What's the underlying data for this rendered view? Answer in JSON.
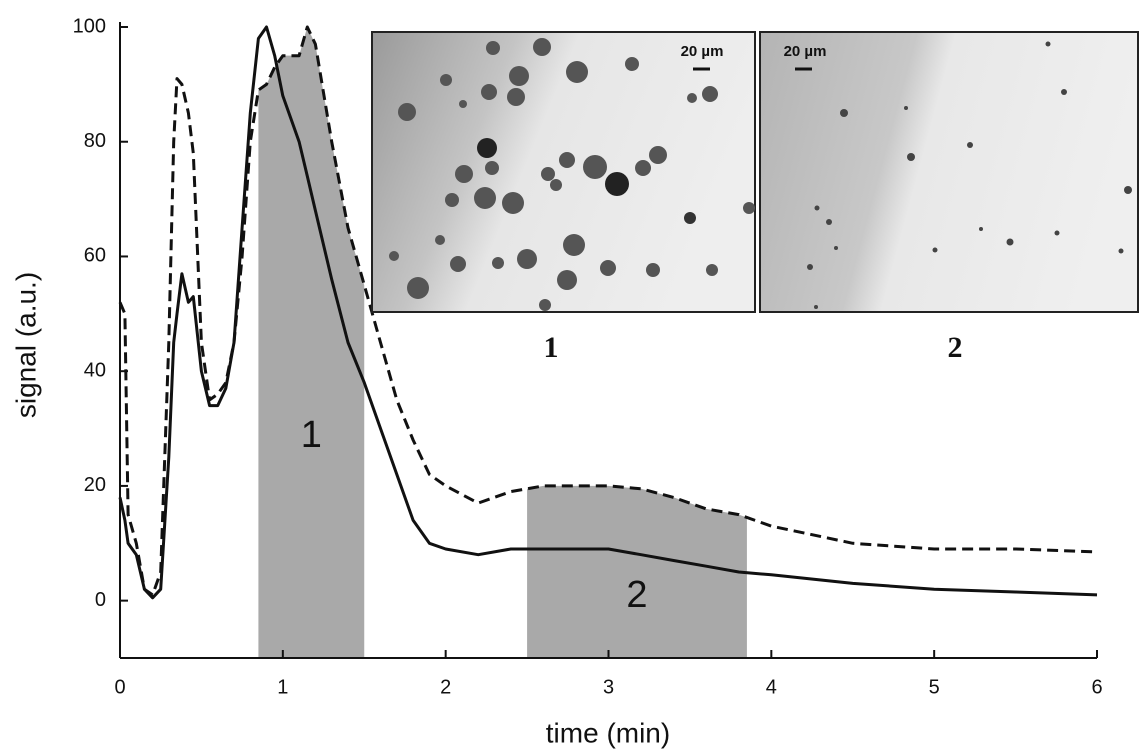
{
  "chart_data": {
    "type": "line",
    "xlabel": "time (min)",
    "ylabel": "signal (a.u.)",
    "x": [
      0,
      0.03,
      0.05,
      0.1,
      0.15,
      0.2,
      0.25,
      0.3,
      0.33,
      0.35,
      0.38,
      0.42,
      0.45,
      0.5,
      0.55,
      0.6,
      0.65,
      0.7,
      0.75,
      0.8,
      0.85,
      0.9,
      0.95,
      1.0,
      1.1,
      1.15,
      1.2,
      1.3,
      1.4,
      1.5,
      1.6,
      1.7,
      1.8,
      1.9,
      2.0,
      2.2,
      2.4,
      2.6,
      2.8,
      3.0,
      3.2,
      3.4,
      3.6,
      3.8,
      4.0,
      4.5,
      5.0,
      5.5,
      6.0
    ],
    "series": [
      {
        "color": "#111111",
        "dash": false,
        "values": [
          18,
          14,
          10,
          8,
          2,
          0.5,
          2,
          25,
          45,
          50,
          57,
          52,
          53,
          40,
          34,
          34,
          37,
          45,
          65,
          85,
          98,
          100,
          95,
          88,
          80,
          74,
          68,
          56,
          45,
          38,
          30,
          22,
          14,
          10,
          9,
          8,
          9,
          9,
          9,
          9,
          8,
          7,
          6,
          5,
          4.5,
          3,
          2,
          1.5,
          1
        ]
      },
      {
        "color": "#111111",
        "dash": true,
        "values": [
          52,
          50,
          15,
          10,
          2,
          1,
          5,
          45,
          80,
          91,
          90,
          85,
          78,
          45,
          35,
          36,
          38,
          45,
          60,
          80,
          89,
          90,
          93,
          95,
          95,
          100,
          97,
          80,
          65,
          55,
          45,
          35,
          28,
          22,
          20,
          17,
          19,
          20,
          20,
          20,
          19.5,
          18,
          16,
          15,
          13,
          10,
          9,
          9,
          8.5
        ]
      }
    ],
    "regions": [
      {
        "label": "1",
        "x": [
          0.85,
          1.5
        ]
      },
      {
        "label": "2",
        "x": [
          2.5,
          3.85
        ]
      }
    ],
    "region_color": "#a9a9a9",
    "insets": [
      {
        "label": "1",
        "scale": "20 µm"
      },
      {
        "label": "2",
        "scale": "20 µm"
      }
    ],
    "xlim": [
      0,
      6
    ],
    "xticks": [
      0,
      1,
      2,
      3,
      4,
      5,
      6
    ],
    "ylim": [
      -10,
      100
    ],
    "yticks": [
      0,
      20,
      40,
      60,
      80,
      100
    ]
  }
}
